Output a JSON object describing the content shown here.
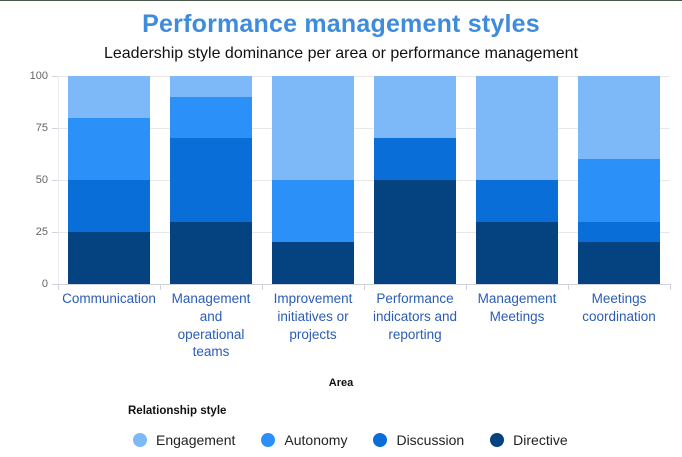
{
  "chart": {
    "title": "Performance management styles",
    "subtitle": "Leadership style dominance per area or performance management",
    "x_axis_title": "Area",
    "legend_title": "Relationship style"
  },
  "colors": {
    "title_text": "#3F8BDC",
    "category_label_text": "#2B5CB5",
    "axis_tick_label_text": "#666666",
    "grid_line": "#E8E8E8",
    "axis_line": "#D2D2DE",
    "zero_label_outline": "#123F7C"
  },
  "chart_data": {
    "type": "bar",
    "stacked": true,
    "title": "Performance management styles",
    "subtitle": "Leadership style dominance per area or performance management",
    "xlabel": "Area",
    "ylabel": "",
    "ylim": [
      0,
      100
    ],
    "y_ticks": [
      100,
      75,
      50,
      25,
      0
    ],
    "grid": true,
    "legend_position": "bottom-left",
    "categories": [
      "Communication",
      "Management\nand\noperational\nteams",
      "Improvement\ninitiatives or\nprojects",
      "Performance\nindicators and\nreporting",
      "Management\nMeetings",
      "Meetings\ncoordination"
    ],
    "series": [
      {
        "name": "Directive",
        "color": "#054280",
        "values": [
          25,
          30,
          20,
          50,
          30,
          20
        ]
      },
      {
        "name": "Discussion",
        "color": "#0A6ED9",
        "values": [
          25,
          40,
          0,
          20,
          20,
          10
        ]
      },
      {
        "name": "Autonomy",
        "color": "#2B90F8",
        "values": [
          30,
          20,
          30,
          0,
          0,
          30
        ]
      },
      {
        "name": "Engagement",
        "color": "#7DB8F9",
        "values": [
          20,
          10,
          50,
          30,
          50,
          40
        ]
      }
    ],
    "zero_value_labels": [
      {
        "category_index": 2,
        "series": "Discussion",
        "label": "0"
      },
      {
        "category_index": 3,
        "series": "Autonomy",
        "label": "0"
      },
      {
        "category_index": 4,
        "series": "Autonomy",
        "label": "0"
      }
    ],
    "legend": {
      "title": "Relationship style",
      "items": [
        {
          "label": "Engagement",
          "color": "#7DB8F9"
        },
        {
          "label": "Autonomy",
          "color": "#2B90F8"
        },
        {
          "label": "Discussion",
          "color": "#0A6ED9"
        },
        {
          "label": "Directive",
          "color": "#054280"
        }
      ]
    }
  }
}
